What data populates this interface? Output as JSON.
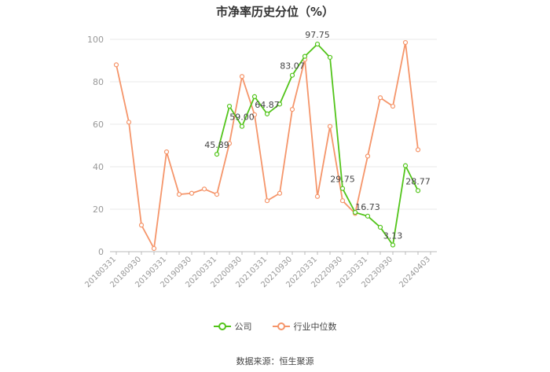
{
  "chart_data": {
    "type": "line",
    "title": "市净率历史分位（%）",
    "ylim": [
      0,
      100
    ],
    "yticks": [
      0,
      20,
      40,
      60,
      80,
      100
    ],
    "grid": true,
    "legend_position": "bottom",
    "x": [
      "20180331",
      "20180630",
      "20180930",
      "20181231",
      "20190331",
      "20190630",
      "20190930",
      "20191231",
      "20200331",
      "20200630",
      "20200930",
      "20201231",
      "20210331",
      "20210630",
      "20210930",
      "20211231",
      "20220331",
      "20220630",
      "20220930",
      "20221231",
      "20230331",
      "20230630",
      "20230930",
      "20231231",
      "20240331",
      "20240403"
    ],
    "xticks_shown": [
      "20180331",
      "20180930",
      "20190331",
      "20190930",
      "20200331",
      "20200930",
      "20210331",
      "20210930",
      "20220331",
      "20220930",
      "20230331",
      "20230930",
      "20240403"
    ],
    "series": [
      {
        "name": "公司",
        "color": "#52c41a",
        "values": [
          null,
          null,
          null,
          null,
          null,
          null,
          null,
          null,
          45.89,
          68.5,
          59.0,
          73.0,
          64.87,
          69.5,
          83.07,
          92.0,
          97.75,
          91.5,
          29.75,
          18.5,
          16.73,
          11.5,
          3.13,
          40.5,
          28.77,
          null
        ],
        "labels": {
          "8": "45.89",
          "10": "59.00",
          "12": "64.87",
          "14": "83.07",
          "16": "97.75",
          "18": "29.75",
          "20": "16.73",
          "22": "3.13",
          "24": "28.77"
        }
      },
      {
        "name": "行业中位数",
        "color": "#f5956a",
        "values": [
          88.0,
          61.0,
          12.5,
          1.5,
          47.0,
          27.0,
          27.5,
          29.5,
          27.0,
          51.0,
          82.5,
          64.5,
          24.0,
          27.5,
          67.0,
          90.5,
          26.0,
          59.0,
          24.0,
          18.0,
          45.0,
          72.5,
          68.5,
          98.5,
          48.0,
          null
        ]
      }
    ]
  },
  "legend": [
    {
      "label": "公司",
      "color": "#52c41a"
    },
    {
      "label": "行业中位数",
      "color": "#f5956a"
    }
  ],
  "source": "数据来源：恒生聚源"
}
